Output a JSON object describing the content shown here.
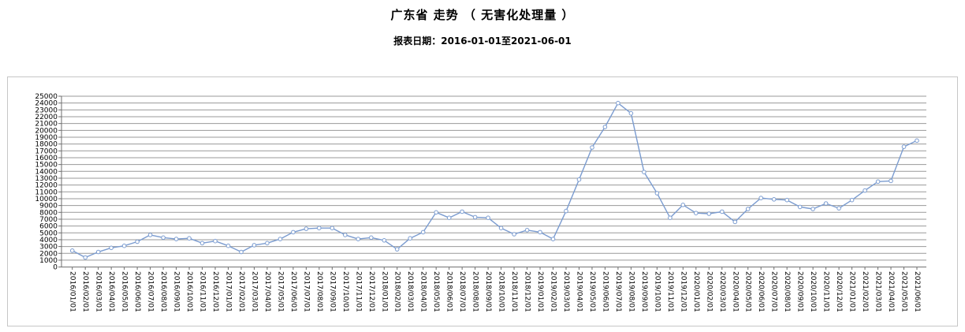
{
  "page": {
    "title": "广东省 走势 （ 无害化处理量 ）",
    "subtitle": "报表日期：2016-01-01至2021-06-01"
  },
  "colors": {
    "series_line": "#7b9cd0",
    "marker_fill": "#ffffff",
    "gridline": "#999999",
    "axis": "#6e6e6e",
    "frame_border": "#c6c6c6",
    "text": "#000000",
    "background": "#ffffff"
  },
  "chart_data": {
    "type": "line",
    "title": "广东省 走势 （ 无害化处理量 ）",
    "subtitle": "报表日期：2016-01-01至2021-06-01",
    "xlabel": "",
    "ylabel": "",
    "ylim": [
      0,
      25000
    ],
    "y_tick_interval": 1000,
    "grid": "horizontal",
    "legend": "none",
    "marker": "hollow-circle",
    "x": [
      "2016/01/01",
      "2016/02/01",
      "2016/03/01",
      "2016/04/01",
      "2016/05/01",
      "2016/06/01",
      "2016/07/01",
      "2016/08/01",
      "2016/09/01",
      "2016/10/01",
      "2016/11/01",
      "2016/12/01",
      "2017/01/01",
      "2017/02/01",
      "2017/03/01",
      "2017/04/01",
      "2017/05/01",
      "2017/06/01",
      "2017/07/01",
      "2017/08/01",
      "2017/09/01",
      "2017/10/01",
      "2017/11/01",
      "2017/12/01",
      "2018/01/01",
      "2018/02/01",
      "2018/03/01",
      "2018/04/01",
      "2018/05/01",
      "2018/06/01",
      "2018/07/01",
      "2018/08/01",
      "2018/09/01",
      "2018/10/01",
      "2018/11/01",
      "2018/12/01",
      "2019/01/01",
      "2019/02/01",
      "2019/03/01",
      "2019/04/01",
      "2019/05/01",
      "2019/06/01",
      "2019/07/01",
      "2019/08/01",
      "2019/09/01",
      "2019/10/01",
      "2019/11/01",
      "2019/12/01",
      "2020/01/01",
      "2020/02/01",
      "2020/03/01",
      "2020/04/01",
      "2020/05/01",
      "2020/06/01",
      "2020/07/01",
      "2020/08/01",
      "2020/09/01",
      "2020/10/01",
      "2020/11/01",
      "2020/12/01",
      "2021/01/01",
      "2021/02/01",
      "2021/03/01",
      "2021/04/01",
      "2021/05/01",
      "2021/06/01"
    ],
    "values": [
      2400,
      1400,
      2200,
      2800,
      3100,
      3700,
      4700,
      4300,
      4100,
      4200,
      3500,
      3800,
      3100,
      2200,
      3200,
      3500,
      4100,
      5100,
      5600,
      5700,
      5700,
      4700,
      4100,
      4300,
      3900,
      2600,
      4200,
      5100,
      8000,
      7200,
      8100,
      7300,
      7200,
      5700,
      4800,
      5400,
      5100,
      4100,
      8200,
      12800,
      17500,
      20500,
      24000,
      22500,
      13900,
      10800,
      7200,
      9100,
      7900,
      7800,
      8100,
      6600,
      8500,
      10100,
      9900,
      9800,
      8800,
      8500,
      9300,
      8600,
      9800,
      11200,
      12500,
      12600,
      17600,
      18500
    ]
  }
}
